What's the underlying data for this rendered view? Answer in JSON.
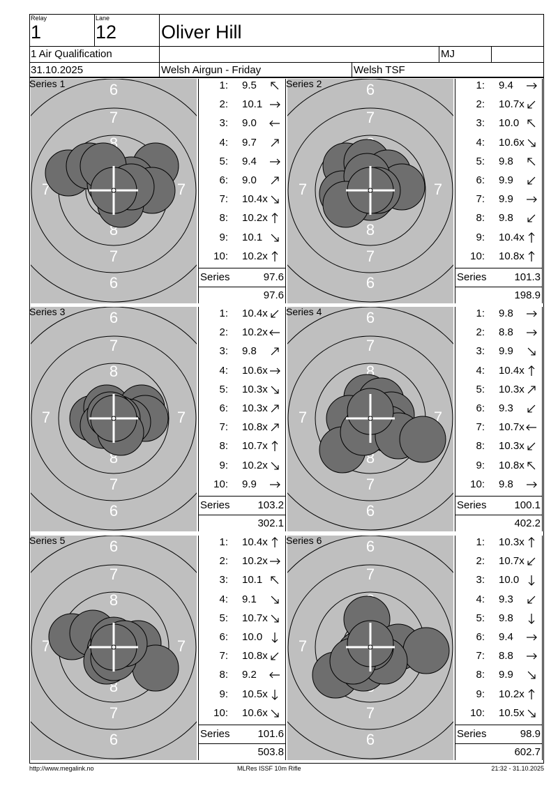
{
  "header": {
    "relay_label": "Relay",
    "relay_value": "1",
    "lane_label": "Lane",
    "lane_value": "12",
    "name": "Oliver Hill",
    "event": "1 Air Qualification",
    "initials": "MJ",
    "date": "31.10.2025",
    "competition": "Welsh Airgun - Friday",
    "club": "Welsh TSF"
  },
  "total_label": "Series",
  "series": [
    {
      "label": "Series 1",
      "total": "97.6",
      "cumulative": "97.6",
      "shots": [
        {
          "n": "1:",
          "v": "9.5",
          "dir": "nw"
        },
        {
          "n": "2:",
          "v": "10.1",
          "dir": "e"
        },
        {
          "n": "3:",
          "v": "9.0",
          "dir": "w"
        },
        {
          "n": "4:",
          "v": "9.7",
          "dir": "ne"
        },
        {
          "n": "5:",
          "v": "9.4",
          "dir": "e"
        },
        {
          "n": "6:",
          "v": "9.0",
          "dir": "ne"
        },
        {
          "n": "7:",
          "v": "10.4x",
          "dir": "se"
        },
        {
          "n": "8:",
          "v": "10.2x",
          "dir": "n"
        },
        {
          "n": "9:",
          "v": "10.1",
          "dir": "se"
        },
        {
          "n": "10:",
          "v": "10.2x",
          "dir": "n"
        }
      ]
    },
    {
      "label": "Series 2",
      "total": "101.3",
      "cumulative": "198.9",
      "shots": [
        {
          "n": "1:",
          "v": "9.4",
          "dir": "e"
        },
        {
          "n": "2:",
          "v": "10.7x",
          "dir": "sw"
        },
        {
          "n": "3:",
          "v": "10.0",
          "dir": "nw"
        },
        {
          "n": "4:",
          "v": "10.6x",
          "dir": "se"
        },
        {
          "n": "5:",
          "v": "9.8",
          "dir": "nw"
        },
        {
          "n": "6:",
          "v": "9.9",
          "dir": "sw"
        },
        {
          "n": "7:",
          "v": "9.9",
          "dir": "e"
        },
        {
          "n": "8:",
          "v": "9.8",
          "dir": "sw"
        },
        {
          "n": "9:",
          "v": "10.4x",
          "dir": "n"
        },
        {
          "n": "10:",
          "v": "10.8x",
          "dir": "n"
        }
      ]
    },
    {
      "label": "Series 3",
      "total": "103.2",
      "cumulative": "302.1",
      "shots": [
        {
          "n": "1:",
          "v": "10.4x",
          "dir": "sw"
        },
        {
          "n": "2:",
          "v": "10.2x",
          "dir": "w"
        },
        {
          "n": "3:",
          "v": "9.8",
          "dir": "ne"
        },
        {
          "n": "4:",
          "v": "10.6x",
          "dir": "e"
        },
        {
          "n": "5:",
          "v": "10.3x",
          "dir": "se"
        },
        {
          "n": "6:",
          "v": "10.3x",
          "dir": "ne"
        },
        {
          "n": "7:",
          "v": "10.8x",
          "dir": "ne"
        },
        {
          "n": "8:",
          "v": "10.7x",
          "dir": "n"
        },
        {
          "n": "9:",
          "v": "10.2x",
          "dir": "se"
        },
        {
          "n": "10:",
          "v": "9.9",
          "dir": "e"
        }
      ]
    },
    {
      "label": "Series 4",
      "total": "100.1",
      "cumulative": "402.2",
      "shots": [
        {
          "n": "1:",
          "v": "9.8",
          "dir": "e"
        },
        {
          "n": "2:",
          "v": "8.8",
          "dir": "e"
        },
        {
          "n": "3:",
          "v": "9.9",
          "dir": "se"
        },
        {
          "n": "4:",
          "v": "10.4x",
          "dir": "n"
        },
        {
          "n": "5:",
          "v": "10.3x",
          "dir": "ne"
        },
        {
          "n": "6:",
          "v": "9.3",
          "dir": "sw"
        },
        {
          "n": "7:",
          "v": "10.7x",
          "dir": "w"
        },
        {
          "n": "8:",
          "v": "10.3x",
          "dir": "sw"
        },
        {
          "n": "9:",
          "v": "10.8x",
          "dir": "nw"
        },
        {
          "n": "10:",
          "v": "9.8",
          "dir": "e"
        }
      ]
    },
    {
      "label": "Series 5",
      "total": "101.6",
      "cumulative": "503.8",
      "shots": [
        {
          "n": "1:",
          "v": "10.4x",
          "dir": "n"
        },
        {
          "n": "2:",
          "v": "10.2x",
          "dir": "e"
        },
        {
          "n": "3:",
          "v": "10.1",
          "dir": "nw"
        },
        {
          "n": "4:",
          "v": "9.1",
          "dir": "se"
        },
        {
          "n": "5:",
          "v": "10.7x",
          "dir": "se"
        },
        {
          "n": "6:",
          "v": "10.0",
          "dir": "s"
        },
        {
          "n": "7:",
          "v": "10.8x",
          "dir": "sw"
        },
        {
          "n": "8:",
          "v": "9.2",
          "dir": "w"
        },
        {
          "n": "9:",
          "v": "10.5x",
          "dir": "s"
        },
        {
          "n": "10:",
          "v": "10.6x",
          "dir": "se"
        }
      ]
    },
    {
      "label": "Series 6",
      "total": "98.9",
      "cumulative": "602.7",
      "shots": [
        {
          "n": "1:",
          "v": "10.3x",
          "dir": "n"
        },
        {
          "n": "2:",
          "v": "10.7x",
          "dir": "sw"
        },
        {
          "n": "3:",
          "v": "10.0",
          "dir": "s"
        },
        {
          "n": "4:",
          "v": "9.3",
          "dir": "sw"
        },
        {
          "n": "5:",
          "v": "9.8",
          "dir": "s"
        },
        {
          "n": "6:",
          "v": "9.4",
          "dir": "e"
        },
        {
          "n": "7:",
          "v": "8.8",
          "dir": "e"
        },
        {
          "n": "8:",
          "v": "9.9",
          "dir": "se"
        },
        {
          "n": "9:",
          "v": "10.2x",
          "dir": "n"
        },
        {
          "n": "10:",
          "v": "10.5x",
          "dir": "se"
        }
      ]
    }
  ],
  "target_rings": [
    "6",
    "7",
    "8"
  ],
  "footer": {
    "left": "http://www.megalink.no",
    "center": "MLRes ISSF 10m Rifle",
    "right": "21:32 - 31.10.2025"
  },
  "colors": {
    "target_bg": "#bfbfbf",
    "shot": "#6e6e6e"
  }
}
